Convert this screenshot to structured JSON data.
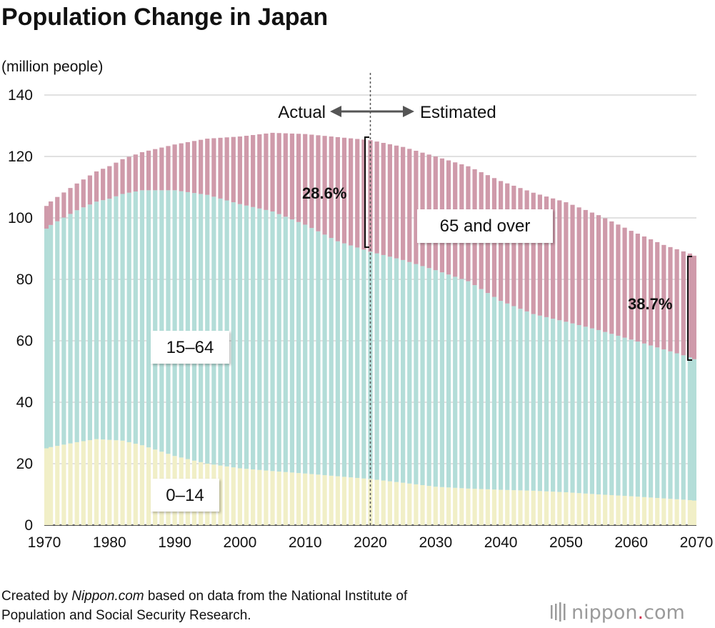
{
  "chart_data": {
    "type": "bar",
    "stacked": true,
    "title": "Population Change in Japan",
    "unit_label": "(million people)",
    "xlim": [
      1970,
      2070
    ],
    "ylim": [
      0,
      140
    ],
    "x_ticks": [
      "1970",
      "1980",
      "1990",
      "2000",
      "2010",
      "2020",
      "2030",
      "2040",
      "2050",
      "2060",
      "2070"
    ],
    "y_ticks": [
      "0",
      "20",
      "40",
      "60",
      "80",
      "100",
      "120",
      "140"
    ],
    "grid": true,
    "divider": {
      "year": 2020,
      "left_label": "Actual",
      "right_label": "Estimated"
    },
    "series": [
      {
        "name": "0–14",
        "color": "#f1efc7",
        "anchors": [
          [
            1970,
            25
          ],
          [
            1975,
            27
          ],
          [
            1978,
            28
          ],
          [
            1982,
            27.5
          ],
          [
            1985,
            26
          ],
          [
            1990,
            22.5
          ],
          [
            1995,
            20
          ],
          [
            2000,
            18.5
          ],
          [
            2005,
            17.6
          ],
          [
            2010,
            16.8
          ],
          [
            2015,
            15.9
          ],
          [
            2020,
            15
          ],
          [
            2025,
            13.8
          ],
          [
            2030,
            12.5
          ],
          [
            2035,
            11.9
          ],
          [
            2040,
            11.5
          ],
          [
            2045,
            11.2
          ],
          [
            2050,
            10.7
          ],
          [
            2055,
            10
          ],
          [
            2060,
            9.4
          ],
          [
            2065,
            8.7
          ],
          [
            2070,
            8
          ]
        ]
      },
      {
        "name": "15–64",
        "color": "#b3ddd8",
        "anchors": [
          [
            1970,
            71.5
          ],
          [
            1975,
            75.5
          ],
          [
            1980,
            78.5
          ],
          [
            1985,
            83
          ],
          [
            1990,
            86.5
          ],
          [
            1995,
            87.5
          ],
          [
            2000,
            86
          ],
          [
            2005,
            84.5
          ],
          [
            2010,
            81
          ],
          [
            2015,
            76.5
          ],
          [
            2020,
            74
          ],
          [
            2025,
            72.5
          ],
          [
            2030,
            70.5
          ],
          [
            2035,
            67.5
          ],
          [
            2040,
            61.5
          ],
          [
            2045,
            57.5
          ],
          [
            2050,
            55.5
          ],
          [
            2055,
            53.5
          ],
          [
            2060,
            51
          ],
          [
            2065,
            48.5
          ],
          [
            2070,
            46
          ]
        ]
      },
      {
        "name": "65 and over",
        "color": "#cf9aaa",
        "anchors": [
          [
            1970,
            7.4
          ],
          [
            1975,
            8.7
          ],
          [
            1980,
            10.6
          ],
          [
            1985,
            12.4
          ],
          [
            1990,
            14.9
          ],
          [
            1995,
            18.3
          ],
          [
            2000,
            22
          ],
          [
            2005,
            25.6
          ],
          [
            2010,
            29.5
          ],
          [
            2015,
            33.9
          ],
          [
            2020,
            36.3
          ],
          [
            2025,
            36.8
          ],
          [
            2030,
            37
          ],
          [
            2035,
            37.4
          ],
          [
            2040,
            39
          ],
          [
            2045,
            39.5
          ],
          [
            2050,
            38.9
          ],
          [
            2055,
            37.4
          ],
          [
            2060,
            35.4
          ],
          [
            2065,
            34
          ],
          [
            2070,
            33.7
          ]
        ]
      }
    ],
    "annotations": {
      "pct_2020": {
        "year": 2020,
        "value": "28.6%"
      },
      "pct_2070": {
        "year": 2070,
        "value": "38.7%"
      }
    }
  },
  "footer": {
    "line1_prefix": "Created by ",
    "line1_source": "Nippon.com",
    "line1_suffix": " based on data from the National Institute of",
    "line2": "Population and Social Security Research."
  },
  "logo": {
    "text": "nippon",
    "dot": ".",
    "domain": "com"
  }
}
